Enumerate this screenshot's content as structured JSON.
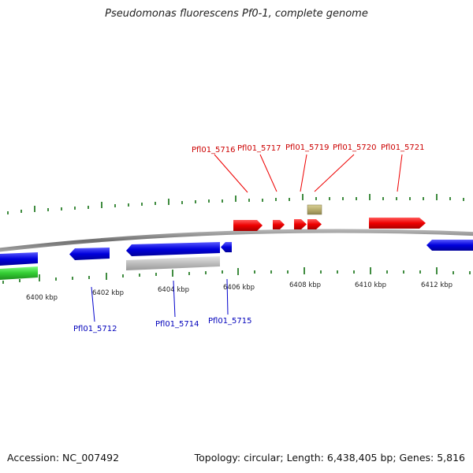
{
  "title": "Pseudomonas fluorescens Pf0-1, complete genome",
  "footer": {
    "accession": "Accession: NC_007492",
    "summary": "Topology: circular; Length: 6,438,405 bp; Genes: 5,816"
  },
  "colors": {
    "backbone": "#8a8a8a",
    "forward_gene": "#ee0000",
    "reverse_gene": "#0000dd",
    "reverse_other": "#bdbdbd",
    "rna": "#33cc33",
    "misc": "#b8ad6e",
    "tick": "#006600",
    "forward_label": "#cc0000",
    "reverse_label": "#0000bb"
  },
  "kbp_labels": [
    "6400 kbp",
    "6402 kbp",
    "6404 kbp",
    "6406 kbp",
    "6408 kbp",
    "6410 kbp",
    "6412 kbp"
  ],
  "forward_genes": [
    {
      "label": "Pfl01_5716"
    },
    {
      "label": "Pfl01_5717"
    },
    {
      "label": "Pfl01_5719"
    },
    {
      "label": "Pfl01_5720"
    },
    {
      "label": "Pfl01_5721"
    }
  ],
  "reverse_genes": [
    {
      "label": "Pfl01_5712"
    },
    {
      "label": "Pfl01_5714"
    },
    {
      "label": "Pfl01_5715"
    }
  ]
}
